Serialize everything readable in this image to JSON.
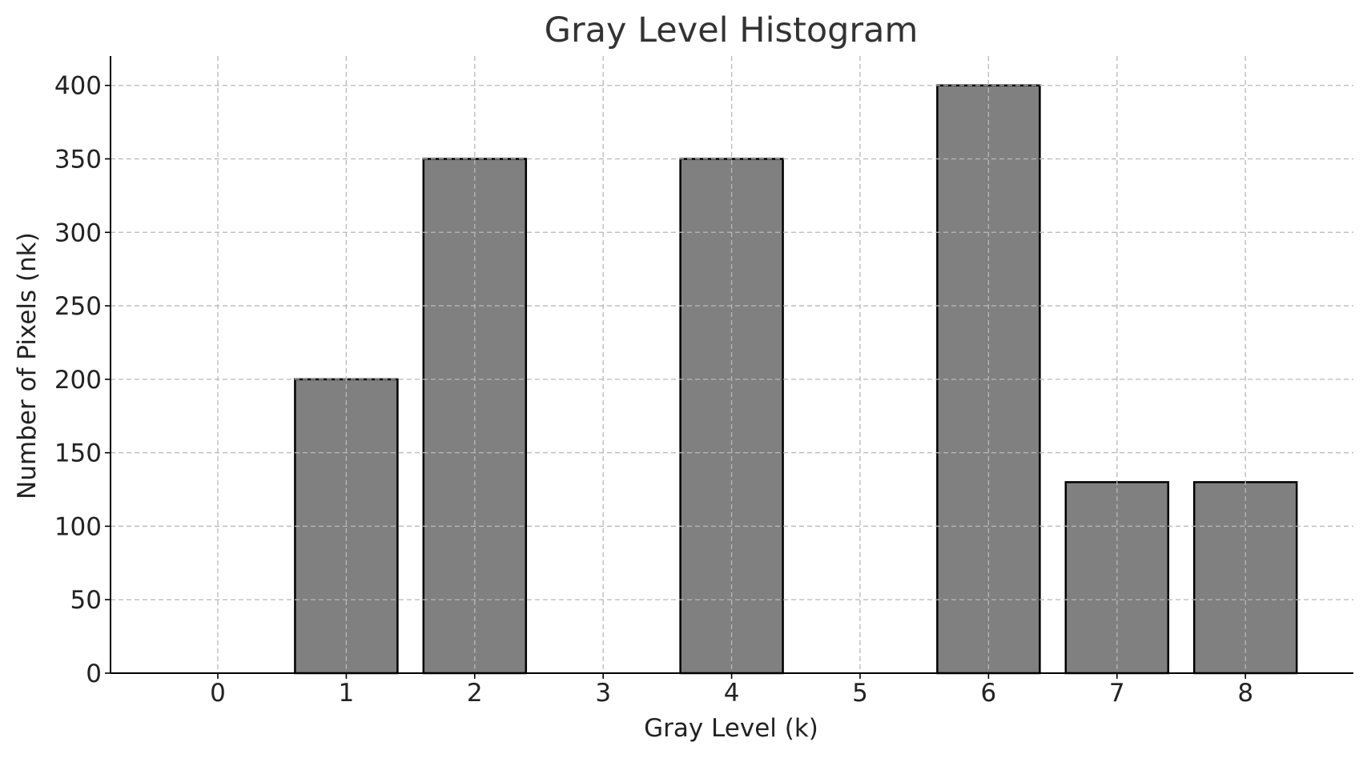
{
  "chart_data": {
    "type": "bar",
    "title": "Gray Level Histogram",
    "xlabel": "Gray Level (k)",
    "ylabel": "Number of Pixels (nk)",
    "categories": [
      "0",
      "1",
      "2",
      "3",
      "4",
      "5",
      "6",
      "7",
      "8"
    ],
    "values": [
      0,
      200,
      350,
      0,
      350,
      0,
      400,
      130,
      130
    ],
    "ylim": [
      0,
      420
    ],
    "yticks": [
      0,
      50,
      100,
      150,
      200,
      250,
      300,
      350,
      400
    ],
    "grid": true,
    "bar_color": "#808080",
    "bar_edge_color": "#000000"
  }
}
